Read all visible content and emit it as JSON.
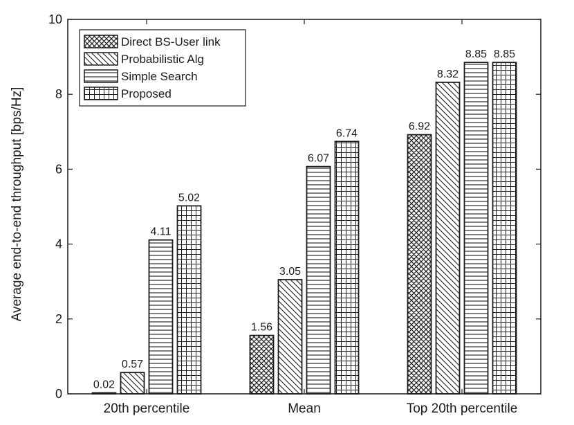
{
  "chart_data": {
    "type": "bar",
    "categories": [
      "20th percentile",
      "Mean",
      "Top 20th percentile"
    ],
    "series": [
      {
        "name": "Direct BS-User link",
        "pattern": "crosshatch",
        "values": [
          0.02,
          1.56,
          6.92
        ],
        "labels": [
          "0.02",
          "1.56",
          "6.92"
        ]
      },
      {
        "name": "Probabilistic Alg",
        "pattern": "diagonal",
        "values": [
          0.57,
          3.05,
          8.32
        ],
        "labels": [
          "0.57",
          "3.05",
          "8.32"
        ]
      },
      {
        "name": "Simple Search",
        "pattern": "horizontal",
        "values": [
          4.11,
          6.07,
          8.85
        ],
        "labels": [
          "4.11",
          "6.07",
          "8.85"
        ]
      },
      {
        "name": "Proposed",
        "pattern": "grid",
        "values": [
          5.02,
          6.74,
          8.85
        ],
        "labels": [
          "5.02",
          "6.74",
          "8.85"
        ]
      }
    ],
    "ylabel": "Average end-to-end throughput [bps/Hz]",
    "xlabel": "",
    "ylim": [
      0,
      10
    ],
    "yticks": [
      "0",
      "2",
      "4",
      "6",
      "8",
      "10"
    ],
    "grid": false,
    "legend_position": "top-left",
    "colors": {
      "bar_fill": "#ffffff",
      "bar_stroke": "#1a1a1a",
      "hatch": "#1a1a1a"
    }
  }
}
